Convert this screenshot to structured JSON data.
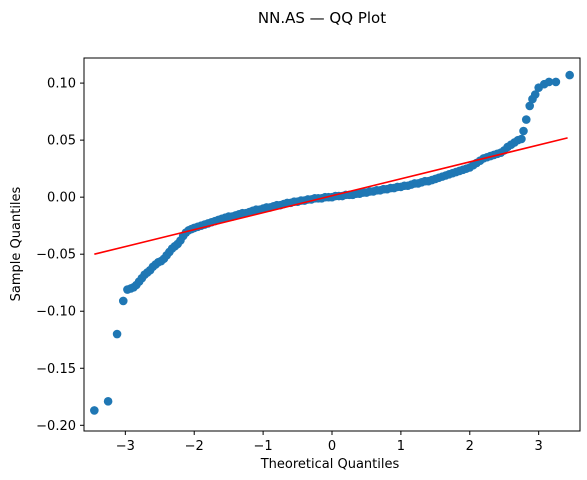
{
  "chart_data": {
    "type": "scatter",
    "title": "NN.AS — QQ Plot",
    "xlabel": "Theoretical Quantiles",
    "ylabel": "Sample Quantiles",
    "xlim": [
      -3.6,
      3.6
    ],
    "ylim": [
      -0.205,
      0.122
    ],
    "x_ticks": [
      {
        "value": -3,
        "label": "−3"
      },
      {
        "value": -2,
        "label": "−2"
      },
      {
        "value": -1,
        "label": "−1"
      },
      {
        "value": 0,
        "label": "0"
      },
      {
        "value": 1,
        "label": "1"
      },
      {
        "value": 2,
        "label": "2"
      },
      {
        "value": 3,
        "label": "3"
      }
    ],
    "y_ticks": [
      {
        "value": -0.2,
        "label": "−0.20"
      },
      {
        "value": -0.15,
        "label": "−0.15"
      },
      {
        "value": -0.1,
        "label": "−0.10"
      },
      {
        "value": -0.05,
        "label": "−0.05"
      },
      {
        "value": 0.0,
        "label": "0.00"
      },
      {
        "value": 0.05,
        "label": "0.05"
      },
      {
        "value": 0.1,
        "label": "0.10"
      }
    ],
    "grid": false,
    "marker_color": "#1f77b4",
    "line_color": "#ff0000",
    "reference_line": {
      "x": [
        -3.45,
        3.42
      ],
      "y": [
        -0.05,
        0.052
      ]
    },
    "series": [
      {
        "points": [
          [
            -3.45,
            -0.187
          ],
          [
            -3.25,
            -0.179
          ],
          [
            -3.12,
            -0.12
          ],
          [
            -3.03,
            -0.091
          ],
          [
            -2.97,
            -0.081
          ],
          [
            -2.92,
            -0.08
          ],
          [
            -2.88,
            -0.079
          ],
          [
            -2.84,
            -0.077
          ],
          [
            -2.8,
            -0.074
          ],
          [
            -2.76,
            -0.071
          ],
          [
            -2.72,
            -0.068
          ],
          [
            -2.68,
            -0.066
          ],
          [
            -2.64,
            -0.064
          ],
          [
            -2.6,
            -0.061
          ],
          [
            -2.56,
            -0.059
          ],
          [
            -2.52,
            -0.057
          ],
          [
            -2.48,
            -0.056
          ],
          [
            -2.44,
            -0.054
          ],
          [
            -2.4,
            -0.051
          ],
          [
            -2.36,
            -0.048
          ],
          [
            -2.32,
            -0.045
          ],
          [
            -2.28,
            -0.043
          ],
          [
            -2.24,
            -0.041
          ],
          [
            -2.2,
            -0.038
          ],
          [
            -2.16,
            -0.034
          ],
          [
            -2.12,
            -0.031
          ],
          [
            -2.08,
            -0.029
          ],
          [
            -2.04,
            -0.028
          ],
          [
            -2.0,
            -0.027
          ],
          [
            -1.95,
            -0.026
          ],
          [
            -1.9,
            -0.025
          ],
          [
            -1.85,
            -0.024
          ],
          [
            -1.8,
            -0.023
          ],
          [
            -1.75,
            -0.022
          ],
          [
            -1.7,
            -0.021
          ],
          [
            -1.65,
            -0.02
          ],
          [
            -1.6,
            -0.019
          ],
          [
            -1.55,
            -0.018
          ],
          [
            -1.5,
            -0.017
          ],
          [
            -1.45,
            -0.017
          ],
          [
            -1.4,
            -0.016
          ],
          [
            -1.35,
            -0.015
          ],
          [
            -1.3,
            -0.014
          ],
          [
            -1.25,
            -0.014
          ],
          [
            -1.2,
            -0.013
          ],
          [
            -1.15,
            -0.012
          ],
          [
            -1.1,
            -0.011
          ],
          [
            -1.05,
            -0.011
          ],
          [
            -1.0,
            -0.01
          ],
          [
            -0.95,
            -0.009
          ],
          [
            -0.9,
            -0.009
          ],
          [
            -0.85,
            -0.008
          ],
          [
            -0.8,
            -0.007
          ],
          [
            -0.75,
            -0.007
          ],
          [
            -0.7,
            -0.006
          ],
          [
            -0.65,
            -0.005
          ],
          [
            -0.6,
            -0.005
          ],
          [
            -0.55,
            -0.004
          ],
          [
            -0.5,
            -0.004
          ],
          [
            -0.45,
            -0.003
          ],
          [
            -0.4,
            -0.003
          ],
          [
            -0.35,
            -0.002
          ],
          [
            -0.3,
            -0.002
          ],
          [
            -0.25,
            -0.001
          ],
          [
            -0.2,
            -0.001
          ],
          [
            -0.15,
            -0.001
          ],
          [
            -0.1,
            0.0
          ],
          [
            -0.05,
            0.0
          ],
          [
            0.0,
            0.0
          ],
          [
            0.05,
            0.001
          ],
          [
            0.1,
            0.001
          ],
          [
            0.15,
            0.001
          ],
          [
            0.2,
            0.002
          ],
          [
            0.25,
            0.002
          ],
          [
            0.3,
            0.002
          ],
          [
            0.35,
            0.003
          ],
          [
            0.4,
            0.003
          ],
          [
            0.45,
            0.004
          ],
          [
            0.5,
            0.004
          ],
          [
            0.55,
            0.005
          ],
          [
            0.6,
            0.005
          ],
          [
            0.65,
            0.006
          ],
          [
            0.7,
            0.006
          ],
          [
            0.75,
            0.007
          ],
          [
            0.8,
            0.007
          ],
          [
            0.85,
            0.008
          ],
          [
            0.9,
            0.008
          ],
          [
            0.95,
            0.009
          ],
          [
            1.0,
            0.009
          ],
          [
            1.05,
            0.01
          ],
          [
            1.1,
            0.01
          ],
          [
            1.15,
            0.011
          ],
          [
            1.2,
            0.012
          ],
          [
            1.25,
            0.012
          ],
          [
            1.3,
            0.013
          ],
          [
            1.35,
            0.014
          ],
          [
            1.4,
            0.014
          ],
          [
            1.45,
            0.015
          ],
          [
            1.5,
            0.016
          ],
          [
            1.55,
            0.017
          ],
          [
            1.6,
            0.018
          ],
          [
            1.65,
            0.019
          ],
          [
            1.7,
            0.02
          ],
          [
            1.75,
            0.021
          ],
          [
            1.8,
            0.022
          ],
          [
            1.85,
            0.023
          ],
          [
            1.9,
            0.024
          ],
          [
            1.95,
            0.025
          ],
          [
            2.0,
            0.026
          ],
          [
            2.05,
            0.028
          ],
          [
            2.1,
            0.03
          ],
          [
            2.15,
            0.032
          ],
          [
            2.2,
            0.034
          ],
          [
            2.25,
            0.035
          ],
          [
            2.3,
            0.036
          ],
          [
            2.35,
            0.037
          ],
          [
            2.4,
            0.038
          ],
          [
            2.45,
            0.039
          ],
          [
            2.5,
            0.041
          ],
          [
            2.55,
            0.044
          ],
          [
            2.6,
            0.046
          ],
          [
            2.65,
            0.048
          ],
          [
            2.7,
            0.05
          ],
          [
            2.75,
            0.051
          ],
          [
            2.78,
            0.058
          ],
          [
            2.82,
            0.068
          ],
          [
            2.87,
            0.08
          ],
          [
            2.91,
            0.086
          ],
          [
            2.95,
            0.09
          ],
          [
            3.0,
            0.096
          ],
          [
            3.08,
            0.099
          ],
          [
            3.15,
            0.101
          ],
          [
            3.25,
            0.101
          ],
          [
            3.45,
            0.107
          ]
        ]
      }
    ]
  }
}
